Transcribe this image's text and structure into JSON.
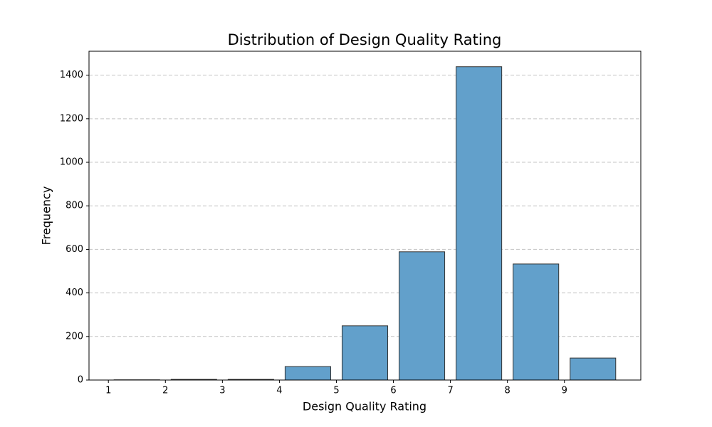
{
  "chart_data": {
    "type": "histogram",
    "title": "Distribution of Design Quality Rating",
    "xlabel": "Design Quality Rating",
    "ylabel": "Frequency",
    "bins": [
      1,
      2,
      3,
      4,
      5,
      6,
      7,
      8,
      9,
      10
    ],
    "values": [
      1,
      3,
      3,
      62,
      249,
      589,
      1439,
      533,
      101
    ],
    "color": "#62a0cb",
    "edgecolor": "#333333",
    "rwidth": 0.8,
    "xlim": [
      0.66,
      10.34
    ],
    "xticks": [
      1,
      2,
      3,
      4,
      5,
      6,
      7,
      8,
      9
    ],
    "ylim": [
      0,
      1510
    ],
    "yticks": [
      0,
      200,
      400,
      600,
      800,
      1000,
      1200,
      1400
    ],
    "grid": "y"
  }
}
